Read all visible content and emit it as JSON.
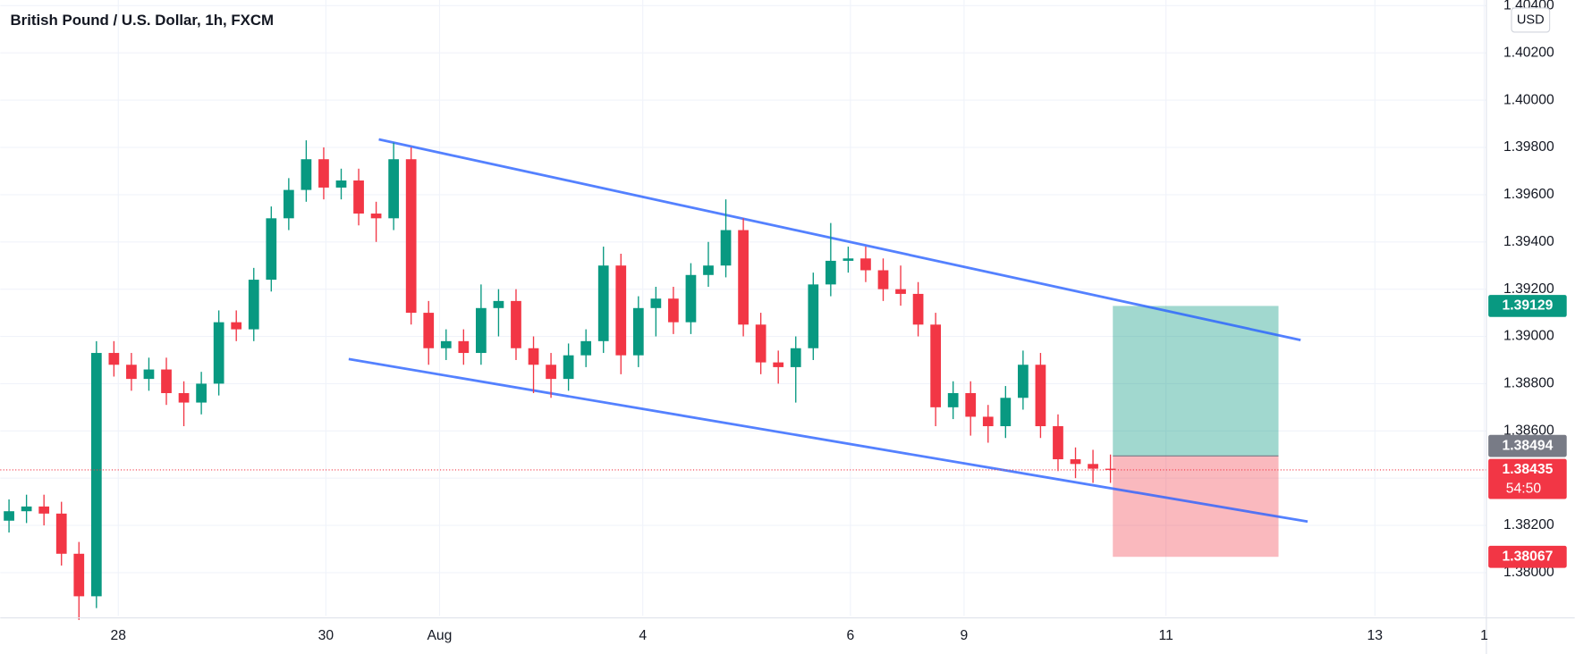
{
  "header": {
    "title": "British Pound / U.S. Dollar, 1h, FXCM",
    "currency": "USD"
  },
  "chart_data": {
    "type": "candlestick",
    "x": [
      2,
      6,
      10,
      14,
      18,
      22,
      26,
      30,
      34,
      38,
      42,
      46,
      50,
      54,
      58,
      62,
      66,
      70,
      74,
      78,
      82,
      86,
      90,
      94,
      98,
      102,
      106,
      110,
      114,
      118,
      122,
      126,
      130,
      134,
      138,
      142,
      146,
      150,
      154,
      158,
      162,
      166,
      170,
      174,
      178,
      182,
      186,
      190,
      194,
      198,
      202,
      206,
      210,
      214,
      218,
      222,
      226,
      230,
      234,
      238,
      242,
      246,
      250,
      254
    ],
    "open": [
      1.3822,
      1.3826,
      1.3828,
      1.3825,
      1.3808,
      1.379,
      1.3893,
      1.3888,
      1.3882,
      1.3886,
      1.3876,
      1.3872,
      1.388,
      1.3906,
      1.3903,
      1.3924,
      1.395,
      1.3962,
      1.3975,
      1.3963,
      1.3966,
      1.3952,
      1.395,
      1.3975,
      1.391,
      1.3895,
      1.3898,
      1.3893,
      1.3912,
      1.3915,
      1.3895,
      1.3888,
      1.3882,
      1.3892,
      1.3898,
      1.393,
      1.3892,
      1.3912,
      1.3916,
      1.3906,
      1.3926,
      1.393,
      1.3945,
      1.3905,
      1.3889,
      1.3887,
      1.3895,
      1.3922,
      1.3932,
      1.3933,
      1.3928,
      1.392,
      1.3918,
      1.3905,
      1.387,
      1.3876,
      1.3866,
      1.3862,
      1.3874,
      1.3888,
      1.3862,
      1.3848,
      1.3846,
      1.3844
    ],
    "high": [
      1.3831,
      1.3833,
      1.3833,
      1.383,
      1.3813,
      1.3898,
      1.3898,
      1.3893,
      1.3891,
      1.3891,
      1.3881,
      1.3885,
      1.3911,
      1.3911,
      1.3929,
      1.3955,
      1.3967,
      1.3983,
      1.398,
      1.3971,
      1.3971,
      1.3957,
      1.3982,
      1.398,
      1.3915,
      1.3903,
      1.3903,
      1.3922,
      1.392,
      1.392,
      1.39,
      1.3893,
      1.3897,
      1.3903,
      1.3938,
      1.3935,
      1.3917,
      1.3921,
      1.3921,
      1.3931,
      1.394,
      1.3958,
      1.395,
      1.391,
      1.3894,
      1.39,
      1.3927,
      1.3948,
      1.3938,
      1.3938,
      1.3933,
      1.393,
      1.3923,
      1.391,
      1.3881,
      1.3881,
      1.3871,
      1.3879,
      1.3894,
      1.3893,
      1.3867,
      1.3853,
      1.3852,
      1.385
    ],
    "low": [
      1.3817,
      1.3821,
      1.382,
      1.3803,
      1.378,
      1.3785,
      1.3883,
      1.3877,
      1.3877,
      1.3871,
      1.3862,
      1.3867,
      1.3875,
      1.3898,
      1.3898,
      1.3919,
      1.3945,
      1.3957,
      1.3958,
      1.3958,
      1.3947,
      1.394,
      1.3945,
      1.3905,
      1.3888,
      1.389,
      1.3888,
      1.3888,
      1.39,
      1.389,
      1.3876,
      1.3874,
      1.3877,
      1.3887,
      1.3893,
      1.3884,
      1.3887,
      1.39,
      1.3901,
      1.3901,
      1.3921,
      1.3925,
      1.39,
      1.3884,
      1.388,
      1.3872,
      1.389,
      1.3917,
      1.3927,
      1.3923,
      1.3915,
      1.3913,
      1.39,
      1.3862,
      1.3865,
      1.3858,
      1.3855,
      1.3857,
      1.3869,
      1.3857,
      1.3843,
      1.384,
      1.3838,
      1.3838
    ],
    "close": [
      1.3826,
      1.3828,
      1.3825,
      1.3808,
      1.379,
      1.3893,
      1.3888,
      1.3882,
      1.3886,
      1.3876,
      1.3872,
      1.388,
      1.3906,
      1.3903,
      1.3924,
      1.395,
      1.3962,
      1.3975,
      1.3963,
      1.3966,
      1.3952,
      1.395,
      1.3975,
      1.391,
      1.3895,
      1.3898,
      1.3893,
      1.3912,
      1.3915,
      1.3895,
      1.3888,
      1.3882,
      1.3892,
      1.3898,
      1.393,
      1.3892,
      1.3912,
      1.3916,
      1.3906,
      1.3926,
      1.393,
      1.3945,
      1.3905,
      1.3889,
      1.3887,
      1.3895,
      1.3922,
      1.3932,
      1.3933,
      1.3928,
      1.392,
      1.3918,
      1.3905,
      1.387,
      1.3876,
      1.3866,
      1.3862,
      1.3874,
      1.3888,
      1.3862,
      1.3848,
      1.3846,
      1.3844,
      1.38435
    ],
    "up_color": "#089981",
    "down_color": "#f23645",
    "xlim": [
      0,
      340
    ],
    "xticks": [
      {
        "value": 27,
        "label": "28"
      },
      {
        "value": 74.5,
        "label": "30"
      },
      {
        "value": 100.5,
        "label": "Aug"
      },
      {
        "value": 147,
        "label": "4"
      },
      {
        "value": 194.5,
        "label": "6"
      },
      {
        "value": 220.5,
        "label": "9"
      },
      {
        "value": 266.7,
        "label": "11"
      },
      {
        "value": 314.5,
        "label": "13"
      },
      {
        "value": 339.5,
        "label": "1"
      }
    ],
    "ylim": [
      1.37817,
      1.40424
    ],
    "yticks": [
      {
        "value": 1.38,
        "label": "1.38000"
      },
      {
        "value": 1.382,
        "label": "1.38200"
      },
      {
        "value": 1.384,
        "label": "1.38400"
      },
      {
        "value": 1.386,
        "label": "1.38600"
      },
      {
        "value": 1.388,
        "label": "1.38800"
      },
      {
        "value": 1.39,
        "label": "1.39000"
      },
      {
        "value": 1.392,
        "label": "1.39200"
      },
      {
        "value": 1.394,
        "label": "1.39400"
      },
      {
        "value": 1.396,
        "label": "1.39600"
      },
      {
        "value": 1.398,
        "label": "1.39800"
      },
      {
        "value": 1.4,
        "label": "1.40000"
      },
      {
        "value": 1.402,
        "label": "1.40200"
      },
      {
        "value": 1.404,
        "label": "1.40400"
      }
    ],
    "grid": true,
    "price_labels": [
      {
        "value": 1.39129,
        "color": "#089981"
      },
      {
        "value": 1.38494,
        "color": "#787b86"
      },
      {
        "value": 1.38435,
        "color": "#f23645"
      },
      {
        "value": 1.38067,
        "color": "#f23645"
      }
    ],
    "countdown": "54:50"
  }
}
